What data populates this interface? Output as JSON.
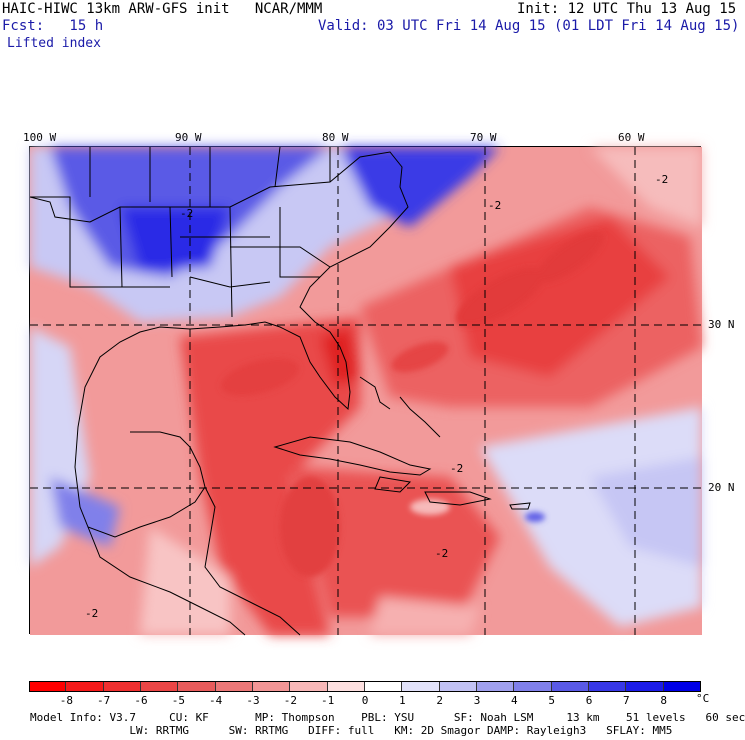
{
  "header": {
    "title": "HAIC-HIWC 13km ARW-GFS init   NCAR/MMM",
    "init": "Init: 12 UTC Thu 13 Aug 15",
    "fcst": "Fcst:   15 h",
    "valid": "Valid: 03 UTC Fri 14 Aug 15 (01 LDT Fri 14 Aug 15)",
    "field": "Lifted index"
  },
  "map": {
    "lon_labels": [
      "100 W",
      "90 W",
      "80 W",
      "70 W",
      "60 W"
    ],
    "lat_labels": [
      "30 N",
      "20 N"
    ],
    "contour_label": "-2",
    "colors": {
      "negative": "#e8252a",
      "positive": "#1a2ee6",
      "border": "#000000"
    }
  },
  "colorbar": {
    "ticks": [
      "-8",
      "-7",
      "-6",
      "-5",
      "-4",
      "-3",
      "-2",
      "-1",
      "0",
      "1",
      "2",
      "3",
      "4",
      "5",
      "6",
      "7",
      "8"
    ],
    "unit": "°C",
    "colors": [
      "#ff0000",
      "#f51a1a",
      "#ef3030",
      "#ea4646",
      "#e85c5c",
      "#ec7878",
      "#f29696",
      "#f8b8b8",
      "#fde0e0",
      "#ffffff",
      "#e2e2fa",
      "#c2c2f4",
      "#a0a0ee",
      "#8080ea",
      "#5a5ae6",
      "#3838e6",
      "#1c1ce8",
      "#0000e6"
    ]
  },
  "model_info": {
    "line1": "Model Info: V3.7     CU: KF       MP: Thompson    PBL: YSU      SF: Noah LSM     13 km    51 levels   60 sec",
    "line2": "               LW: RRTMG      SW: RRTMG   DIFF: full   KM: 2D Smagor DAMP: Rayleigh3   SFLAY: MM5"
  }
}
